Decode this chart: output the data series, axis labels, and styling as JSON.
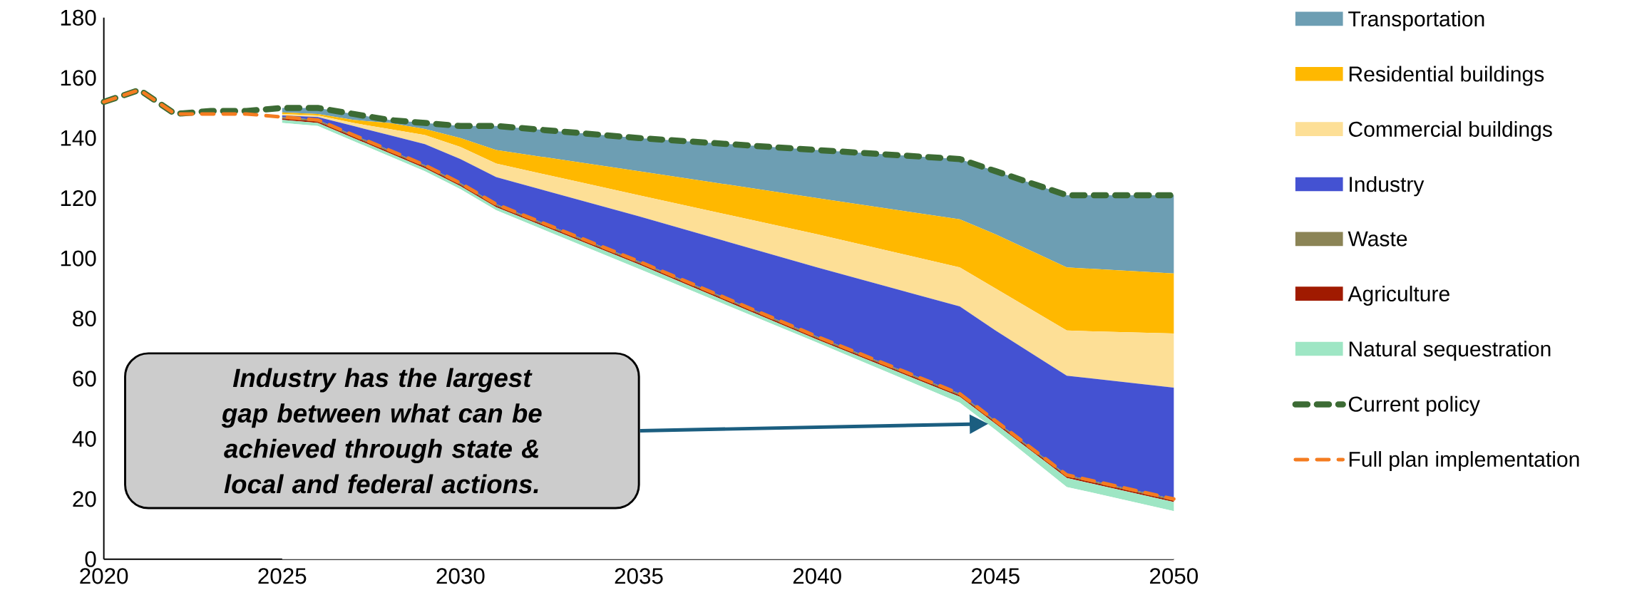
{
  "chart_data": {
    "type": "area",
    "stacked": true,
    "xlim": [
      2020,
      2050
    ],
    "ylim": [
      0,
      180
    ],
    "xticks": [
      2020,
      2025,
      2030,
      2035,
      2040,
      2045,
      2050
    ],
    "yticks": [
      0,
      20,
      40,
      60,
      80,
      100,
      120,
      140,
      160,
      180
    ],
    "legend": "right",
    "annotations": [
      "**Industry has the largest gap between what can be achieved through state & local and federal actions.**"
    ],
    "series": [
      {
        "color": "#ffffff",
        "x": [
          2025,
          2026,
          2027,
          2028,
          2029,
          2030,
          2031,
          2035,
          2040,
          2044,
          2045,
          2047,
          2050
        ],
        "values": [
          145,
          144,
          139,
          134,
          129,
          123,
          116,
          96.5,
          72,
          52,
          43,
          24,
          16
        ]
      },
      {
        "name": "Natural sequestration",
        "color": "#9ee6c4",
        "x": [
          2025,
          2026,
          2027,
          2028,
          2029,
          2030,
          2031,
          2035,
          2040,
          2044,
          2045,
          2047,
          2050
        ],
        "values": [
          1,
          1,
          1,
          1,
          1,
          1,
          1,
          1.5,
          1,
          2,
          2,
          3,
          3
        ]
      },
      {
        "name": "Agriculture",
        "color": "#a01a00",
        "x": [
          2025,
          2026,
          2027,
          2028,
          2029,
          2030,
          2031,
          2035,
          2040,
          2044,
          2045,
          2047,
          2050
        ],
        "values": [
          0.5,
          0.5,
          0.5,
          0.5,
          0.5,
          0.5,
          0.5,
          0.5,
          0.5,
          0.5,
          0.5,
          0.5,
          0.5
        ]
      },
      {
        "name": "Waste",
        "color": "#8b8456",
        "x": [
          2025,
          2026,
          2027,
          2028,
          2029,
          2030,
          2031,
          2035,
          2040,
          2044,
          2045,
          2047,
          2050
        ],
        "values": [
          0.5,
          0.5,
          0.5,
          0.5,
          0.5,
          0.5,
          0.5,
          0.5,
          0.5,
          0.5,
          0.5,
          0.5,
          0.5
        ]
      },
      {
        "name": "Industry",
        "color": "#4452d2",
        "x": [
          2025,
          2026,
          2027,
          2028,
          2029,
          2030,
          2031,
          2035,
          2040,
          2044,
          2045,
          2047,
          2050
        ],
        "values": [
          0.5,
          1,
          3,
          5,
          7,
          8,
          9,
          15,
          23,
          29,
          30,
          33,
          37
        ]
      },
      {
        "name": "Commercial buildings",
        "color": "#fddf96",
        "x": [
          2025,
          2026,
          2027,
          2028,
          2029,
          2030,
          2031,
          2035,
          2040,
          2044,
          2045,
          2047,
          2050
        ],
        "values": [
          0.5,
          0.5,
          1,
          2,
          3,
          4,
          4.5,
          7,
          11,
          13,
          14,
          15,
          18
        ]
      },
      {
        "name": "Residential buildings",
        "color": "#ffb800",
        "x": [
          2025,
          2026,
          2027,
          2028,
          2029,
          2030,
          2031,
          2035,
          2040,
          2044,
          2045,
          2047,
          2050
        ],
        "values": [
          0.5,
          0.5,
          1,
          2,
          2,
          3,
          4.5,
          8,
          12,
          16,
          18,
          21,
          20
        ]
      },
      {
        "name": "Transportation",
        "color": "#6d9eb3",
        "x": [
          2025,
          2026,
          2027,
          2028,
          2029,
          2030,
          2031,
          2035,
          2040,
          2044,
          2045,
          2047,
          2050
        ],
        "values": [
          1.5,
          2,
          2,
          1,
          2,
          4,
          8,
          11,
          16,
          20,
          21,
          24,
          26
        ]
      },
      {
        "name": "Current policy",
        "type": "line",
        "color": "#3c6b34",
        "line_style": "dashed",
        "x": [
          2020,
          2021,
          2022,
          2023,
          2024,
          2025,
          2026,
          2027,
          2028,
          2029,
          2030,
          2031,
          2035,
          2040,
          2044,
          2045,
          2047,
          2050
        ],
        "values": [
          152,
          156,
          148,
          149,
          149,
          150,
          150,
          148,
          146,
          145,
          144,
          144,
          140,
          136,
          133,
          129,
          121,
          121
        ]
      },
      {
        "name": "Full plan implementation",
        "type": "line",
        "color": "#f47c20",
        "line_style": "dashed",
        "x": [
          2020,
          2021,
          2022,
          2023,
          2024,
          2025,
          2026,
          2027,
          2028,
          2029,
          2030,
          2031,
          2035,
          2040,
          2044,
          2045,
          2047,
          2050
        ],
        "values": [
          152,
          156,
          148,
          148,
          148,
          147,
          146,
          141,
          136,
          131,
          125,
          118,
          99,
          74,
          55,
          46,
          28,
          20
        ]
      }
    ]
  }
}
